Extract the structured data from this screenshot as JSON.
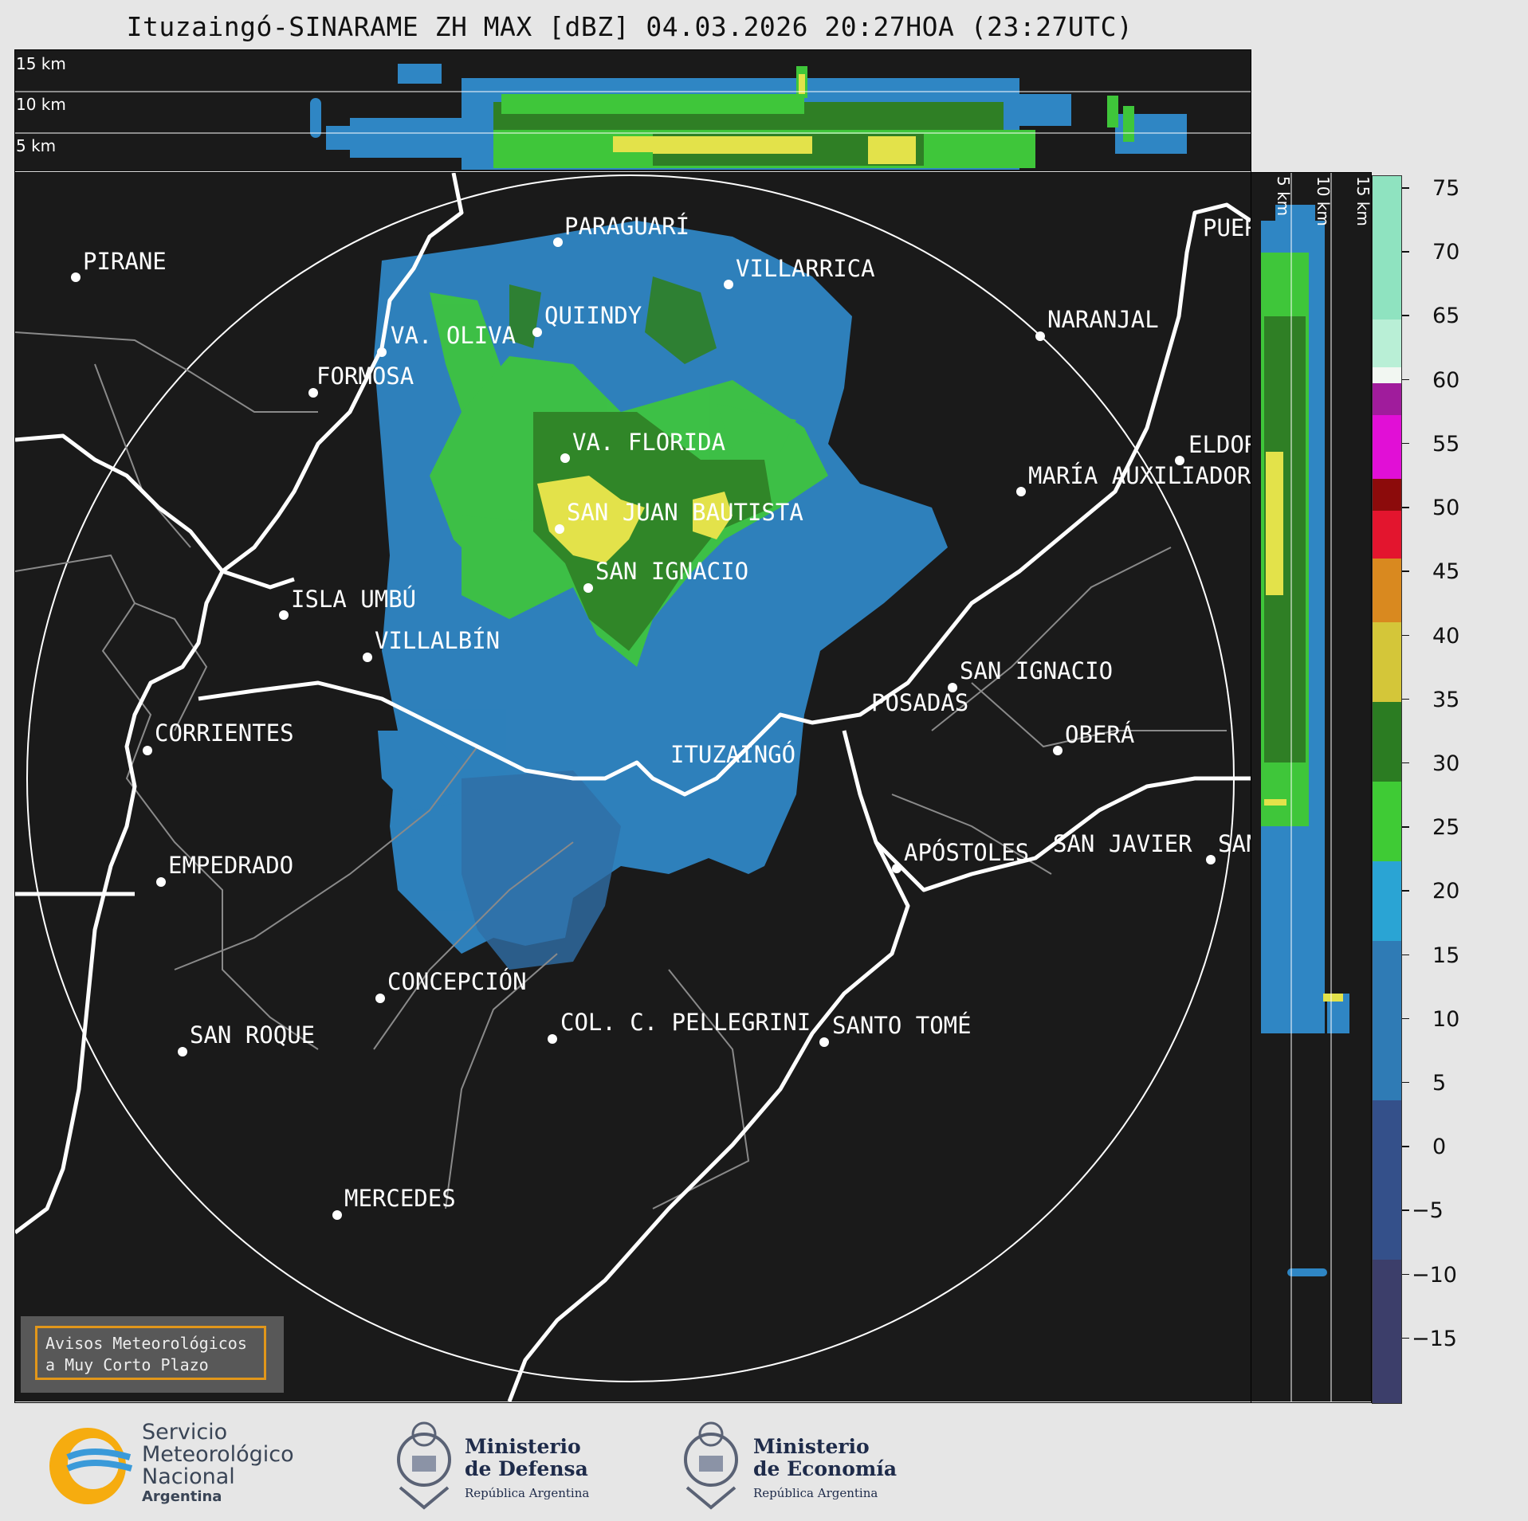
{
  "title": "Ituzaingó-SINARAME ZH MAX [dBZ] 04.03.2026 20:27HOA (23:27UTC)",
  "top_panel": {
    "altitude_labels": [
      "15 km",
      "10 km",
      "5 km"
    ]
  },
  "side_panel": {
    "altitude_labels": [
      "5 km",
      "10 km",
      "15 km"
    ]
  },
  "map": {
    "radar_site": "ITUZAINGÓ",
    "cities": [
      {
        "name": "PARAGUARÍ"
      },
      {
        "name": "PIRANE"
      },
      {
        "name": "VILLARRICA"
      },
      {
        "name": "QUIINDY"
      },
      {
        "name": "VA. OLIVA"
      },
      {
        "name": "NARANJAL"
      },
      {
        "name": "FORMOSA"
      },
      {
        "name": "VA. FLORIDA"
      },
      {
        "name": "ELDORADO"
      },
      {
        "name": "MARÍA AUXILIADORA"
      },
      {
        "name": "SAN JUAN BAUTISTA"
      },
      {
        "name": "SAN IGNACIO"
      },
      {
        "name": "ISLA UMBÚ"
      },
      {
        "name": "VILLALBÍN"
      },
      {
        "name": "SAN IGNACIO"
      },
      {
        "name": "POSADAS"
      },
      {
        "name": "CORRIENTES"
      },
      {
        "name": "ITUZAINGÓ"
      },
      {
        "name": "OBERÁ"
      },
      {
        "name": "EMPEDRADO"
      },
      {
        "name": "APÓSTOLES"
      },
      {
        "name": "SAN JAVIER"
      },
      {
        "name": "SAN JAVIER"
      },
      {
        "name": "CONCEPCIÓN"
      },
      {
        "name": "COL. C. PELLEGRINI"
      },
      {
        "name": "SANTO TOMÉ"
      },
      {
        "name": "SAN ROQUE"
      },
      {
        "name": "MERCEDES"
      },
      {
        "name": "PUERTO"
      }
    ]
  },
  "warning": {
    "line1": "Avisos Meteorológicos",
    "line2": "a Muy Corto Plazo"
  },
  "colorbar": {
    "unit": "dBZ",
    "ticks": [
      "75",
      "70",
      "65",
      "60",
      "55",
      "50",
      "45",
      "40",
      "35",
      "30",
      "25",
      "20",
      "15",
      "10",
      "5",
      "0",
      "−5",
      "−10",
      "−15"
    ],
    "range": [
      -20,
      76
    ]
  },
  "footer": {
    "smn": [
      "Servicio",
      "Meteorológico",
      "Nacional",
      "Argentina"
    ],
    "defensa": {
      "name1": "Ministerio",
      "name2": "de Defensa",
      "sub": "República Argentina"
    },
    "economia": {
      "name1": "Ministerio",
      "name2": "de Economía",
      "sub": "República Argentina"
    }
  },
  "colors": {
    "background": "#1a1a1a",
    "weak_echo": "#2f86c4",
    "moderate_echo": "#3fc63a",
    "strong_echo": "#2f7f25",
    "heavy_echo": "#e3e24a",
    "warning_border": "#f3a21a"
  }
}
